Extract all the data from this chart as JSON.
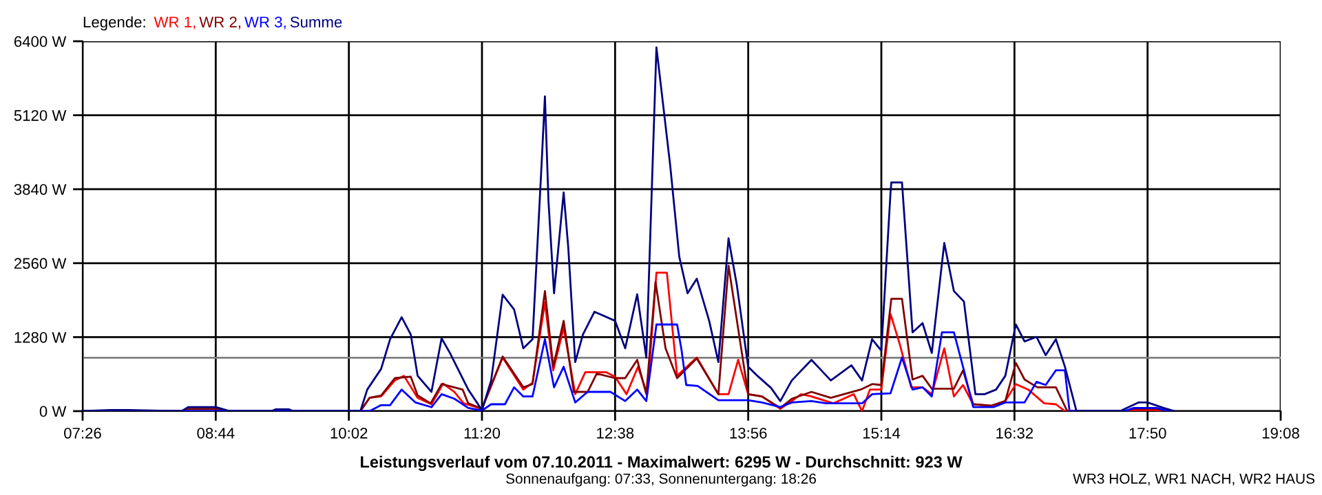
{
  "chart_data": {
    "type": "line",
    "title": "Leistungsverlauf vom 07.10.2011 - Maximalwert: 6295 W - Durchschnitt: 923 W",
    "subtitle": "Sonnenaufgang: 07:33, Sonnenuntergang: 18:26",
    "annotations": [
      "WR3 HOLZ, WR1 NACH, WR2 HAUS"
    ],
    "legend_title": "Legende:",
    "legend": "top left",
    "grid": true,
    "marker": "none",
    "line_style": "solid",
    "xlim": [
      7.4333,
      19.1333
    ],
    "ylim": [
      0,
      6400
    ],
    "xticks": [
      {
        "value": 7.4333,
        "label": "07:26"
      },
      {
        "value": 8.7333,
        "label": "08:44"
      },
      {
        "value": 10.0333,
        "label": "10:02"
      },
      {
        "value": 11.3333,
        "label": "11:20"
      },
      {
        "value": 12.6333,
        "label": "12:38"
      },
      {
        "value": 13.9333,
        "label": "13:56"
      },
      {
        "value": 15.2333,
        "label": "15:14"
      },
      {
        "value": 16.5333,
        "label": "16:32"
      },
      {
        "value": 17.8333,
        "label": "17:50"
      },
      {
        "value": 19.1333,
        "label": "19:08"
      }
    ],
    "yticks": [
      {
        "value": 0,
        "label": "0 W"
      },
      {
        "value": 1280,
        "label": "1280 W"
      },
      {
        "value": 2560,
        "label": "2560 W"
      },
      {
        "value": 3840,
        "label": "3840 W"
      },
      {
        "value": 5120,
        "label": "5120 W"
      },
      {
        "value": 6400,
        "label": "6400 W"
      }
    ],
    "ref_lines": [
      {
        "axis": "y",
        "value": 923,
        "label": null,
        "color": "#808080"
      }
    ],
    "series": [
      {
        "name": "WR 1,",
        "color": "#ff0000",
        "x": [
          10.146,
          10.235,
          10.348,
          10.482,
          10.571,
          10.705,
          10.84,
          10.953,
          11.064,
          11.154,
          11.333,
          11.535,
          11.737,
          11.827,
          11.948,
          12.029,
          12.131,
          12.244,
          12.342,
          12.544,
          12.633,
          12.745,
          12.857,
          12.947,
          13.037,
          13.139,
          13.239,
          13.431,
          13.642,
          13.741,
          13.835,
          13.933,
          14.067,
          14.247,
          14.359,
          14.449,
          14.551,
          14.763,
          14.964,
          15.045,
          15.122,
          15.233,
          15.323,
          15.412,
          15.525,
          15.636,
          15.726,
          15.848,
          15.942,
          16.031,
          16.13,
          16.309,
          16.444,
          16.547,
          16.668,
          16.824,
          16.938,
          17.026,
          17.609,
          17.698,
          17.923,
          17.99
        ],
        "values": [
          0,
          230,
          254,
          531,
          611,
          230,
          119,
          476,
          333,
          135,
          40,
          928,
          373,
          492,
          1880,
          706,
          1444,
          293,
          674,
          674,
          595,
          293,
          768,
          293,
          2395,
          2395,
          611,
          928,
          293,
          293,
          887,
          293,
          254,
          40,
          174,
          293,
          254,
          135,
          293,
          0,
          373,
          373,
          1682,
          1166,
          412,
          412,
          293,
          1087,
          254,
          452,
          119,
          95,
          174,
          468,
          373,
          135,
          119,
          0,
          0,
          20,
          20,
          0
        ]
      },
      {
        "name": "WR 2,",
        "color": "#800000",
        "x": [
          7.44,
          8.4,
          8.465,
          8.734,
          8.872,
          10.146,
          10.235,
          10.348,
          10.482,
          10.638,
          10.705,
          10.832,
          10.939,
          11.145,
          11.199,
          11.333,
          11.535,
          11.737,
          11.827,
          11.948,
          12.029,
          12.131,
          12.23,
          12.365,
          12.454,
          12.633,
          12.732,
          12.849,
          12.938,
          13.028,
          13.126,
          13.239,
          13.431,
          13.642,
          13.741,
          13.933,
          14.067,
          14.247,
          14.359,
          14.551,
          14.74,
          15.031,
          15.143,
          15.233,
          15.331,
          15.435,
          15.538,
          15.636,
          15.726,
          15.942,
          16.031,
          16.13,
          16.309,
          16.444,
          16.547,
          16.632,
          16.757,
          16.938,
          17.049,
          17.609,
          17.698,
          17.923,
          18.013
        ],
        "values": [
          0,
          0,
          40,
          40,
          0,
          0,
          230,
          270,
          571,
          595,
          270,
          135,
          468,
          373,
          135,
          40,
          944,
          412,
          468,
          2077,
          768,
          1563,
          333,
          333,
          650,
          571,
          571,
          887,
          293,
          2236,
          1087,
          571,
          912,
          293,
          2515,
          293,
          254,
          55,
          214,
          333,
          230,
          373,
          468,
          452,
          1944,
          1944,
          547,
          611,
          388,
          388,
          706,
          119,
          95,
          174,
          833,
          547,
          412,
          412,
          0,
          0,
          40,
          40,
          0
        ]
      },
      {
        "name": "WR 3,",
        "color": "#0000ff",
        "x": [
          7.44,
          10.235,
          10.348,
          10.436,
          10.549,
          10.684,
          10.84,
          10.939,
          11.064,
          11.199,
          11.333,
          11.423,
          11.558,
          11.647,
          11.737,
          11.827,
          11.948,
          12.037,
          12.131,
          12.244,
          12.365,
          12.588,
          12.732,
          12.849,
          12.938,
          13.037,
          13.239,
          13.283,
          13.328,
          13.44,
          13.642,
          13.933,
          14.067,
          14.247,
          14.359,
          14.551,
          14.695,
          15.045,
          15.143,
          15.323,
          15.435,
          15.538,
          15.636,
          15.726,
          15.825,
          15.942,
          16.04,
          16.13,
          16.332,
          16.444,
          16.632,
          16.749,
          16.838,
          16.938,
          17.026,
          17.071,
          17.609,
          17.698,
          17.923,
          18.035
        ],
        "values": [
          0,
          0,
          103,
          103,
          373,
          150,
          68,
          293,
          214,
          55,
          10,
          119,
          119,
          412,
          254,
          254,
          1244,
          412,
          768,
          150,
          333,
          333,
          174,
          373,
          174,
          1499,
          1499,
          1047,
          452,
          436,
          190,
          190,
          150,
          71,
          150,
          174,
          135,
          135,
          293,
          309,
          928,
          373,
          412,
          254,
          1363,
          1363,
          706,
          71,
          71,
          150,
          150,
          507,
          452,
          706,
          706,
          0,
          0,
          55,
          55,
          0
        ]
      },
      {
        "name": "Summe",
        "color": "#000080",
        "x": [
          7.44,
          7.7,
          7.88,
          8.4,
          8.465,
          8.734,
          8.872,
          9.276,
          9.316,
          9.45,
          9.491,
          10.146,
          10.213,
          10.348,
          10.436,
          10.549,
          10.638,
          10.705,
          10.84,
          10.939,
          11.02,
          11.199,
          11.333,
          11.423,
          11.535,
          11.647,
          11.737,
          11.827,
          11.915,
          11.948,
          11.983,
          12.037,
          12.131,
          12.176,
          12.244,
          12.319,
          12.432,
          12.633,
          12.732,
          12.849,
          12.938,
          13.037,
          13.171,
          13.26,
          13.341,
          13.431,
          13.552,
          13.642,
          13.741,
          13.821,
          13.933,
          14.023,
          14.157,
          14.247,
          14.359,
          14.551,
          14.74,
          14.941,
          15.045,
          15.143,
          15.233,
          15.323,
          15.331,
          15.435,
          15.538,
          15.636,
          15.726,
          15.848,
          15.942,
          16.04,
          16.152,
          16.242,
          16.354,
          16.444,
          16.547,
          16.632,
          16.749,
          16.838,
          16.938,
          17.026,
          17.139,
          17.564,
          17.744,
          17.833,
          17.99,
          18.094
        ],
        "values": [
          0,
          20,
          20,
          0,
          70,
          70,
          0,
          0,
          30,
          30,
          0,
          0,
          373,
          730,
          1244,
          1625,
          1325,
          611,
          333,
          1261,
          1006,
          373,
          17,
          531,
          2015,
          1760,
          1087,
          1244,
          4258,
          5448,
          3623,
          2039,
          3783,
          2831,
          849,
          1325,
          1720,
          1563,
          1087,
          2022,
          928,
          6295,
          4258,
          2672,
          2039,
          2291,
          1563,
          849,
          2990,
          2196,
          768,
          611,
          400,
          174,
          531,
          887,
          531,
          792,
          531,
          1244,
          1047,
          3783,
          3957,
          3957,
          1363,
          1523,
          1006,
          2910,
          2077,
          1896,
          293,
          293,
          373,
          611,
          1499,
          1206,
          1285,
          968,
          1244,
          768,
          0,
          0,
          150,
          150,
          55,
          0
        ]
      }
    ]
  }
}
